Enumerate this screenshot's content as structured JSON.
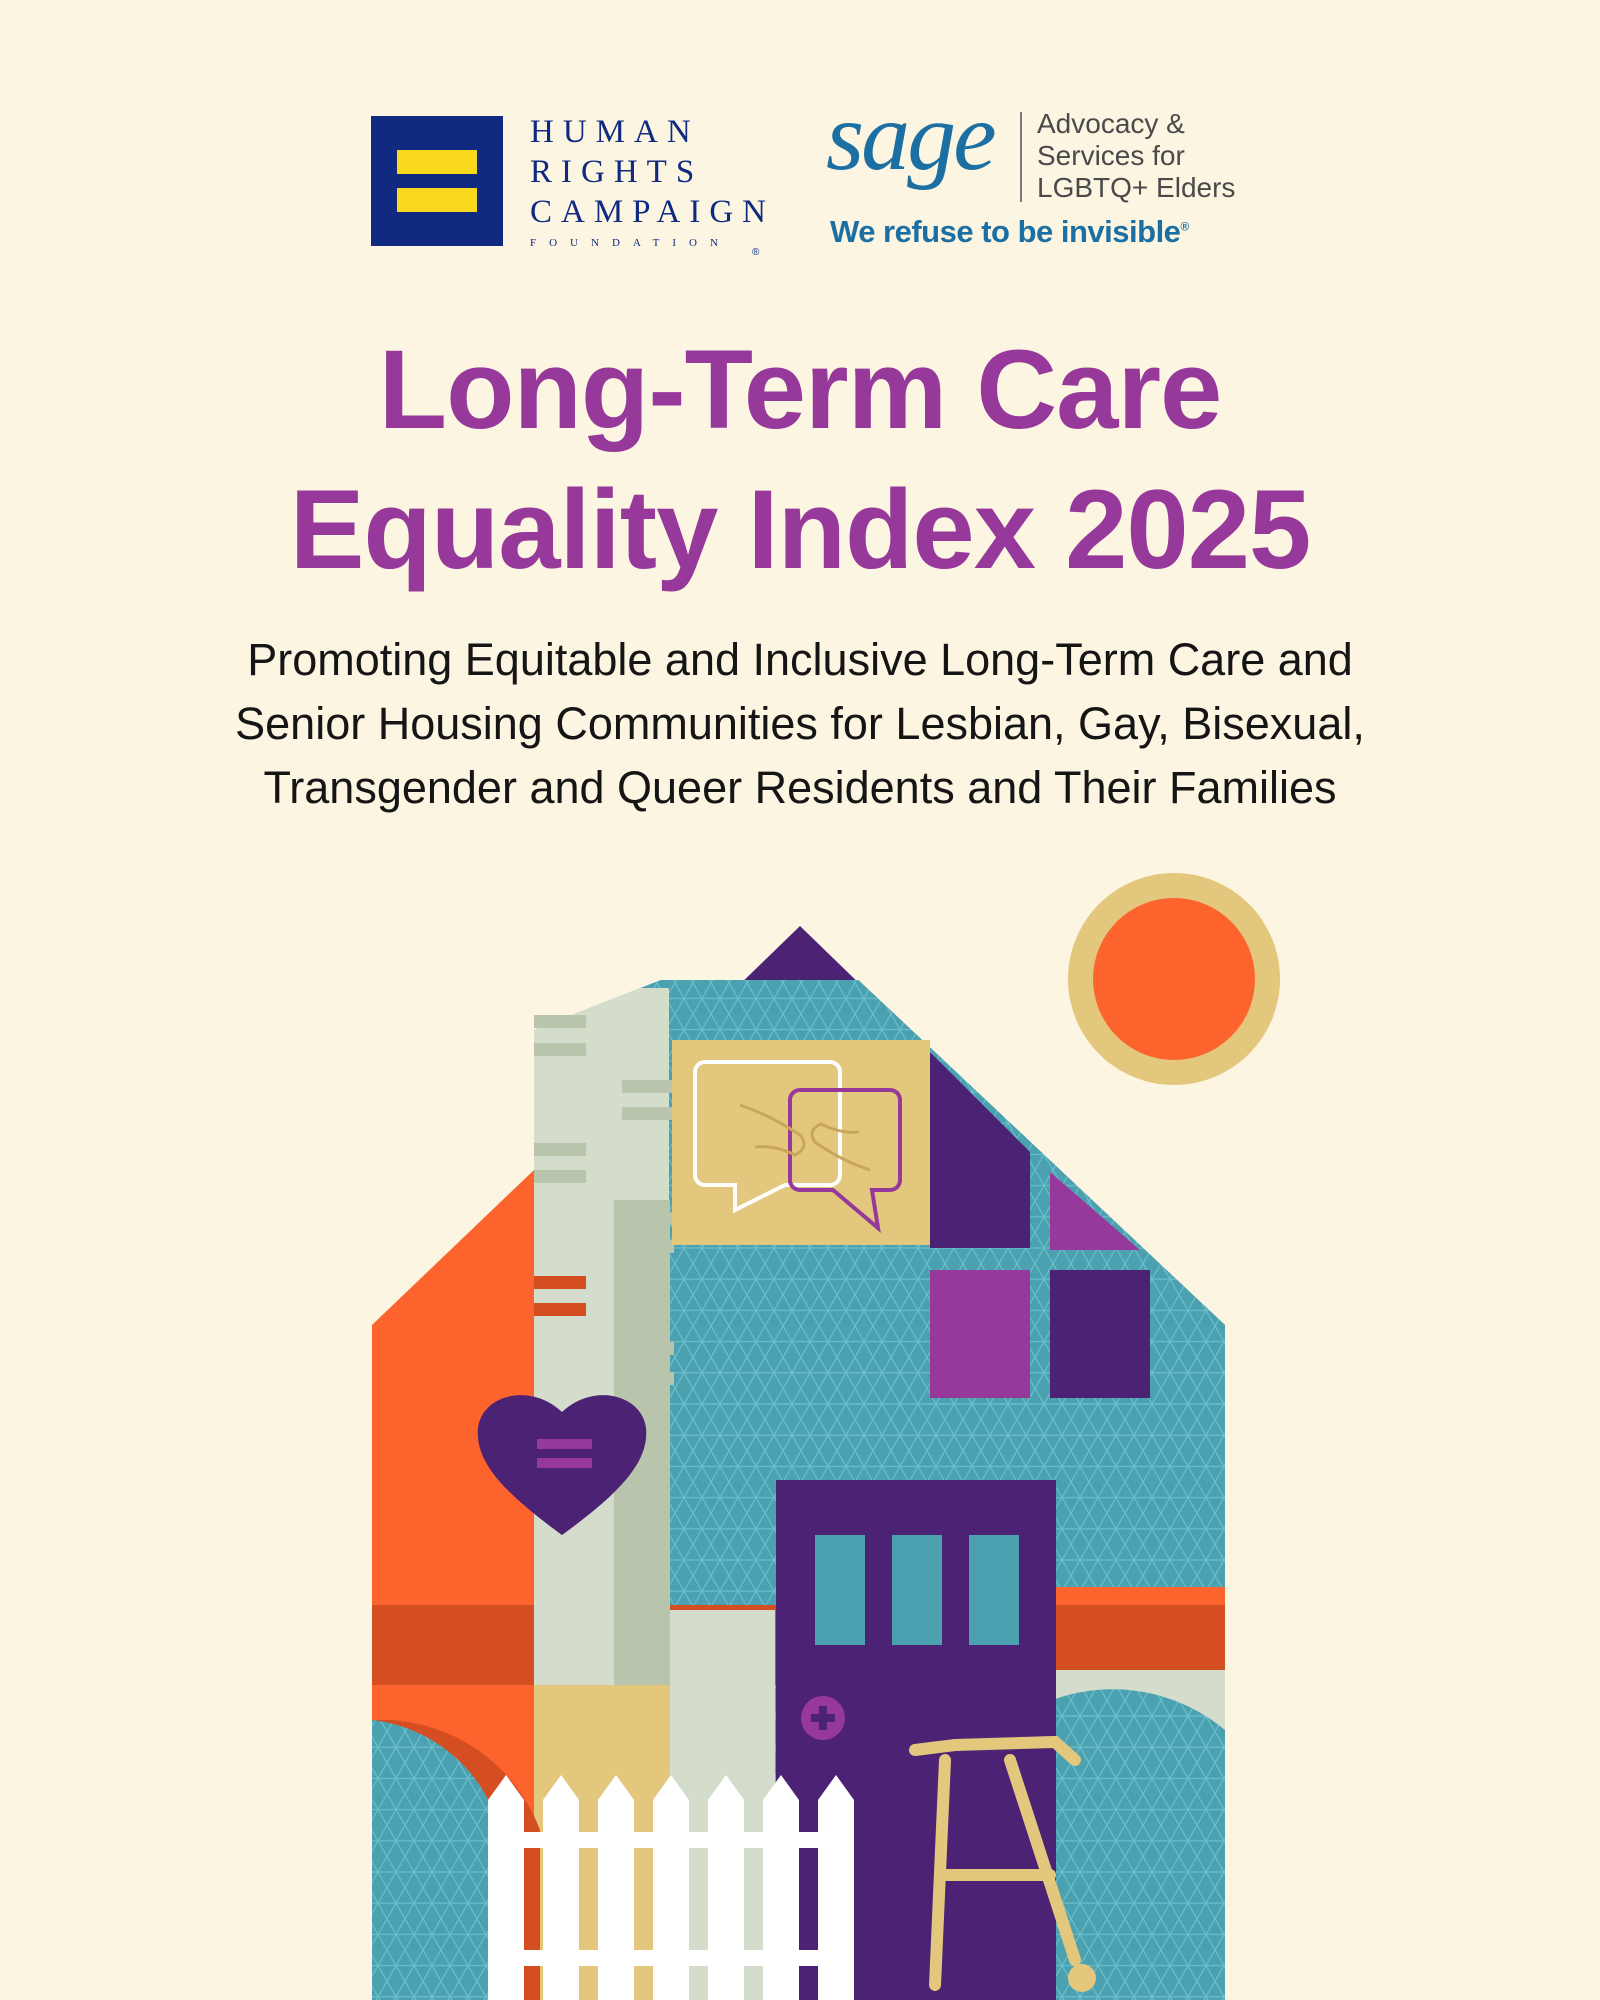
{
  "hrc_logo": {
    "lines": [
      "HUMAN",
      "RIGHTS",
      "CAMPAIGN",
      "FOUNDATION"
    ],
    "registered_mark": "®",
    "colors": {
      "box": "#0F2A80",
      "equal_sign": "#F9D71C"
    }
  },
  "sage_logo": {
    "wordmark": "sage",
    "tagline_lines": [
      "Advocacy &",
      "Services for",
      "LGBTQ+ Elders"
    ],
    "slogan": "We refuse to be invisible",
    "slogan_mark": "®",
    "color": "#1B6FA3"
  },
  "title_lines": [
    "Long-Term Care",
    "Equality Index 2025"
  ],
  "subtitle_lines": [
    "Promoting Equitable and Inclusive Long-Term Care and",
    "Senior Housing Communities for Lesbian, Gay, Bisexual,",
    "Transgender and Queer Residents and Their Families"
  ],
  "colors": {
    "background": "#FBF5E1",
    "title": "#96399A",
    "teal": "#4CA1B0",
    "orange": "#FD642D",
    "purple": "#4B2274",
    "magenta": "#96399A",
    "sand": "#E3C77D",
    "pale": "#D4DCCB"
  },
  "illustration_icons": [
    "house",
    "sun",
    "heart-equal-sign",
    "speech-bubbles-handshake",
    "door",
    "walker",
    "picket-fence"
  ]
}
